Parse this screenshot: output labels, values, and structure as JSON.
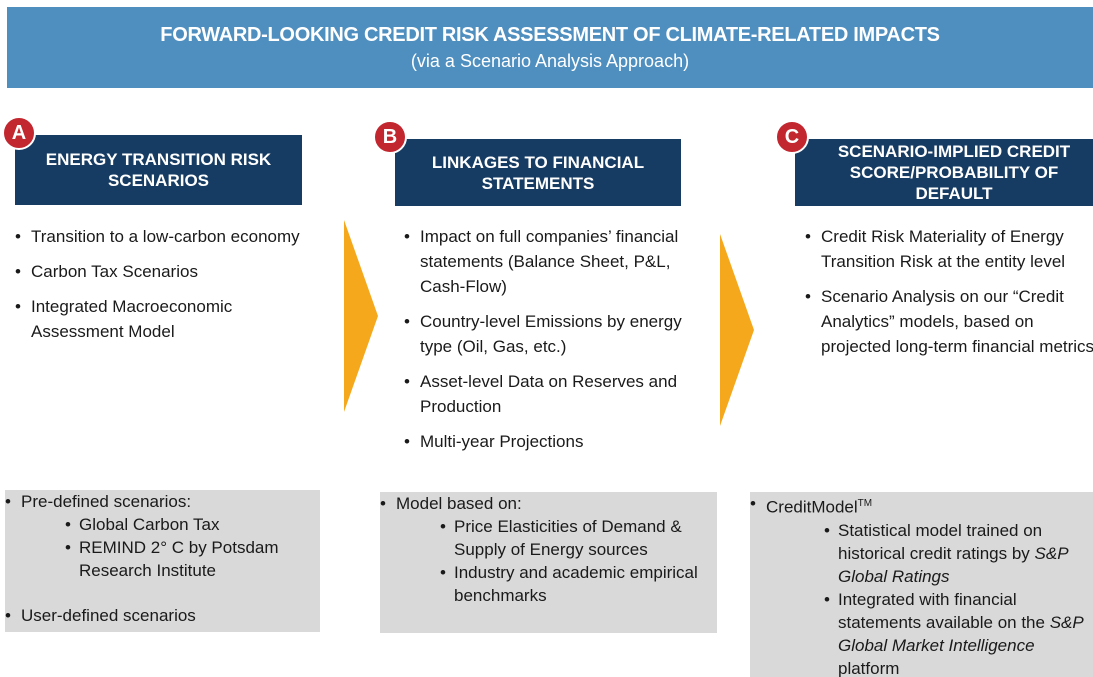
{
  "header": {
    "title": "FORWARD-LOOKING CREDIT RISK ASSESSMENT OF CLIMATE-RELATED IMPACTS",
    "subtitle": "(via a Scenario Analysis Approach)"
  },
  "columns": [
    {
      "badge": "A",
      "heading": "ENERGY TRANSITION RISK SCENARIOS",
      "bullets": [
        "Transition to a low-carbon economy",
        "Carbon Tax Scenarios",
        "Integrated Macroeconomic Assessment Model"
      ],
      "details": [
        {
          "text": "Pre-defined scenarios:",
          "sub": [
            {
              "text": "Global Carbon Tax"
            },
            {
              "text": "REMIND 2° C by Potsdam Research Institute"
            }
          ]
        },
        {
          "text": "User-defined scenarios"
        }
      ]
    },
    {
      "badge": "B",
      "heading": "LINKAGES TO FINANCIAL STATEMENTS",
      "bullets": [
        "Impact on full companies’ financial statements (Balance Sheet, P&L, Cash-Flow)",
        "Country-level Emissions by energy type (Oil, Gas, etc.)",
        "Asset-level Data on Reserves and Production",
        "Multi-year Projections"
      ],
      "details": [
        {
          "text": "Model based on:",
          "sub": [
            {
              "text": "Price Elasticities of Demand & Supply of Energy sources"
            },
            {
              "text": "Industry and academic empirical benchmarks"
            }
          ]
        }
      ]
    },
    {
      "badge": "C",
      "heading": "SCENARIO-IMPLIED CREDIT SCORE/PROBABILITY OF DEFAULT",
      "bullets": [
        "Credit Risk Materiality of Energy Transition Risk at the entity level",
        "Scenario Analysis on our “Credit Analytics” models, based on projected long-term financial metrics"
      ],
      "details": [
        {
          "text": "CreditModel",
          "sup": "TM",
          "sub": [
            {
              "text": "Statistical model trained on historical credit ratings by ",
              "em": "S&P Global Ratings"
            },
            {
              "text": "Integrated with financial statements available on the ",
              "em": "S&P Global Market Intelligence",
              "after": " platform"
            }
          ]
        }
      ]
    }
  ]
}
